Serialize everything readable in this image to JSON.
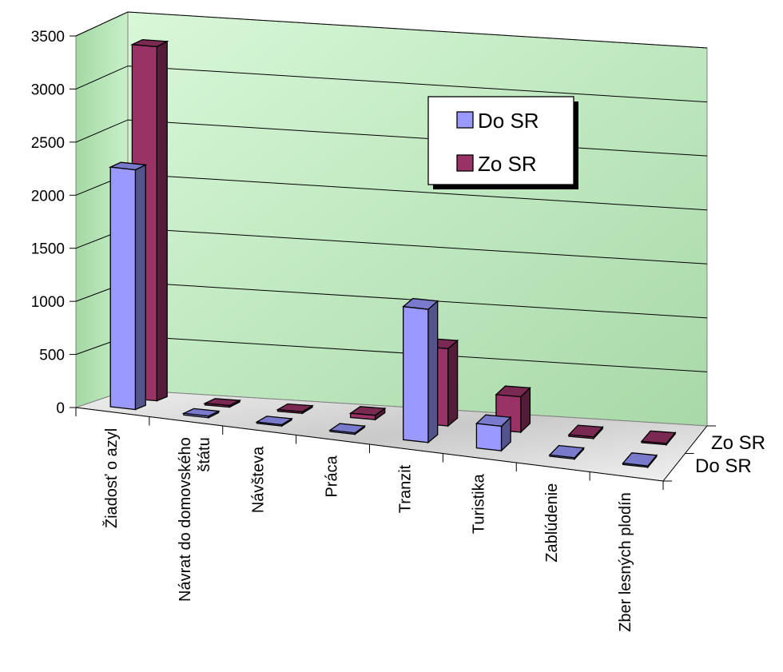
{
  "chart_data": {
    "type": "bar",
    "categories": [
      "Žiadosť o azyl",
      [
        "Návrat do domovského",
        "štátu"
      ],
      "Návšteva",
      "Práca",
      "Tranzit",
      "Turistika",
      "Zablúdenie",
      "Zber lesných plodín"
    ],
    "series": [
      {
        "name": "Do SR",
        "values": [
          2250,
          15,
          10,
          10,
          1250,
          230,
          5,
          5
        ],
        "color": "#9999ff"
      },
      {
        "name": "Zo SR",
        "values": [
          3300,
          15,
          15,
          40,
          720,
          330,
          15,
          5
        ],
        "color": "#993366"
      }
    ],
    "y_ticks": [
      "0",
      "500",
      "1000",
      "1500",
      "2000",
      "2500",
      "3000",
      "3500"
    ],
    "ylim": [
      0,
      3500
    ],
    "depth_labels": [
      "Zo SR",
      "Do SR"
    ],
    "legend": {
      "position": "top-right",
      "entries": [
        "Do SR",
        "Zo SR"
      ]
    },
    "grid": true,
    "projection": "3d-perspective",
    "wall_color": "#c9f0c9",
    "floor_color": "#dcdcdc"
  }
}
